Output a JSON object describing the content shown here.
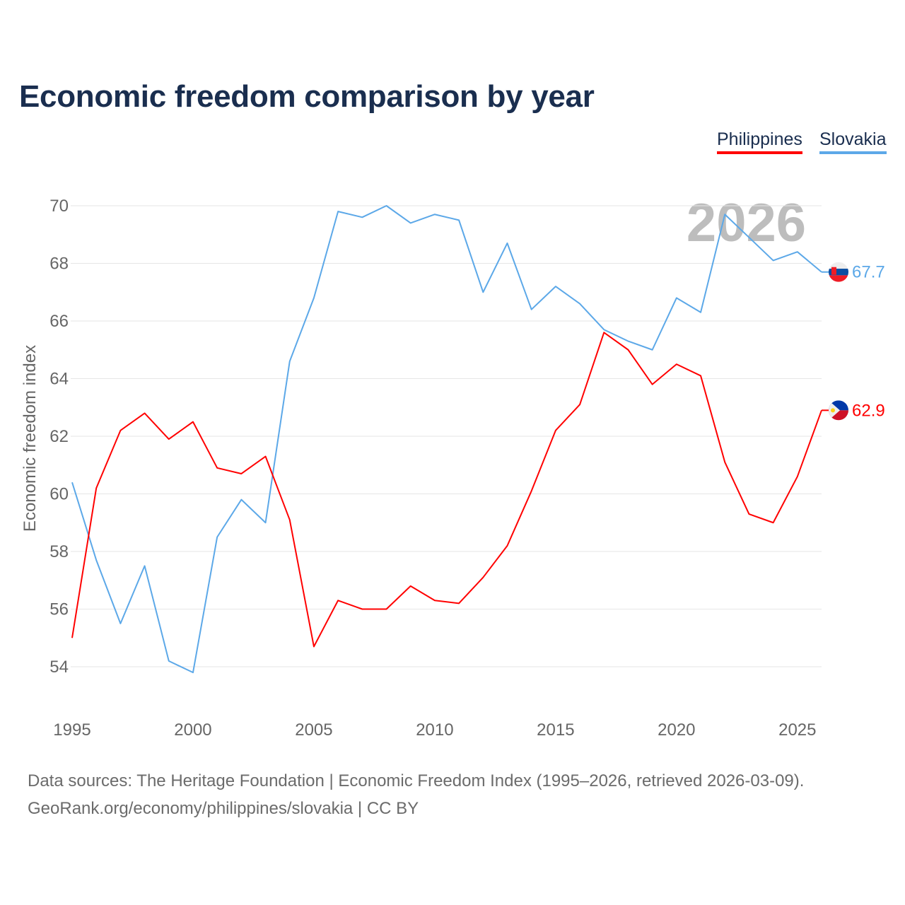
{
  "chart_data": {
    "type": "line",
    "title": "Economic freedom comparison by year",
    "xlabel": "",
    "ylabel": "Economic freedom index",
    "ylim": [
      53,
      71
    ],
    "xlim": [
      1995,
      2026
    ],
    "yticks": [
      54,
      56,
      58,
      60,
      62,
      64,
      66,
      68,
      70
    ],
    "xticks": [
      1995,
      2000,
      2005,
      2010,
      2015,
      2020,
      2025
    ],
    "grid": true,
    "legend_position": "top-right",
    "year_watermark": "2026",
    "x": [
      1995,
      1996,
      1997,
      1998,
      1999,
      2000,
      2001,
      2002,
      2003,
      2004,
      2005,
      2006,
      2007,
      2008,
      2009,
      2010,
      2011,
      2012,
      2013,
      2014,
      2015,
      2016,
      2017,
      2018,
      2019,
      2020,
      2021,
      2022,
      2023,
      2024,
      2025,
      2026
    ],
    "series": [
      {
        "name": "Philippines",
        "color": "#ff0000",
        "end_label": "62.9",
        "values": [
          55.0,
          60.2,
          62.2,
          62.8,
          61.9,
          62.5,
          60.9,
          60.7,
          61.3,
          59.1,
          54.7,
          56.3,
          56.0,
          56.0,
          56.8,
          56.3,
          56.2,
          57.1,
          58.2,
          60.1,
          62.2,
          63.1,
          65.6,
          65.0,
          63.8,
          64.5,
          64.1,
          61.1,
          59.3,
          59.0,
          60.6,
          62.9
        ]
      },
      {
        "name": "Slovakia",
        "color": "#5ca8e8",
        "end_label": "67.7",
        "values": [
          60.4,
          57.7,
          55.5,
          57.5,
          54.2,
          53.8,
          58.5,
          59.8,
          59.0,
          64.6,
          66.8,
          69.8,
          69.6,
          70.0,
          69.4,
          69.7,
          69.5,
          67.0,
          68.7,
          66.4,
          67.2,
          66.6,
          65.7,
          65.3,
          65.0,
          66.8,
          66.3,
          69.7,
          68.9,
          68.1,
          68.4,
          67.7
        ]
      }
    ]
  },
  "footer": {
    "line1": "Data sources: The Heritage Foundation | Economic Freedom Index (1995–2026, retrieved 2026-03-09).",
    "line2": "GeoRank.org/economy/philippines/slovakia | CC BY"
  }
}
